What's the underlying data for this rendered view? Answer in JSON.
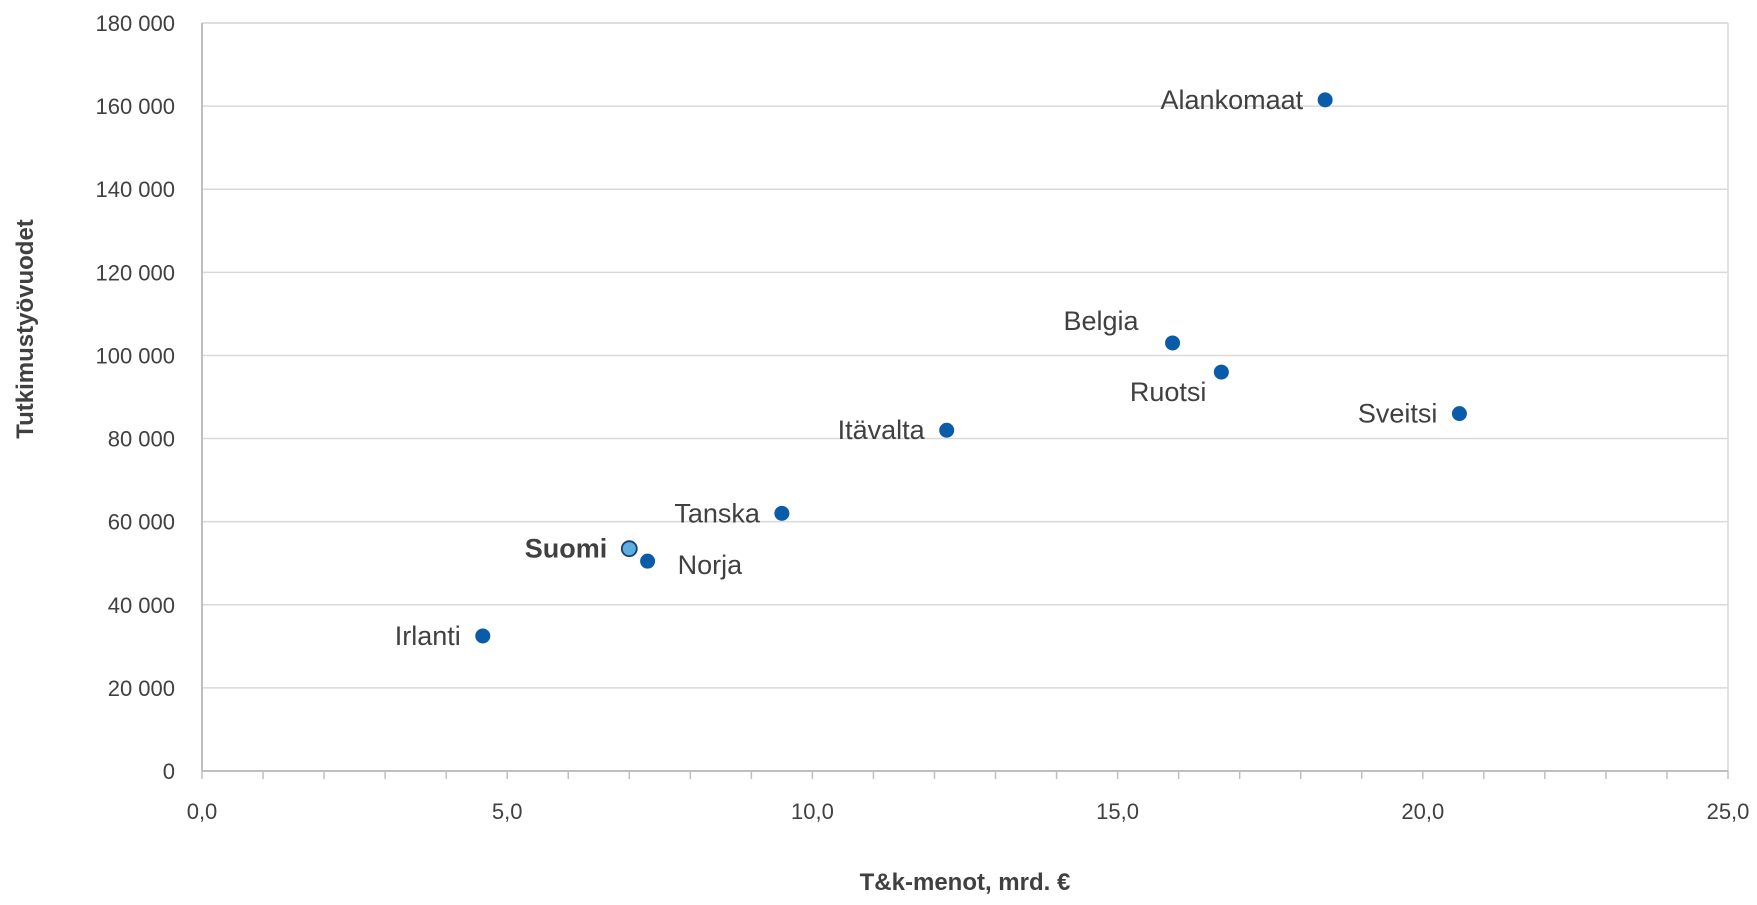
{
  "chart_data": {
    "type": "scatter",
    "title": "",
    "xlabel": "T&k-menot, mrd. €",
    "ylabel": "Tutkimustyövuodet",
    "xlim": [
      0,
      25
    ],
    "ylim": [
      0,
      180000
    ],
    "x_ticks": [
      {
        "value": 0,
        "label": "0,0"
      },
      {
        "value": 5,
        "label": "5,0"
      },
      {
        "value": 10,
        "label": "10,0"
      },
      {
        "value": 15,
        "label": "15,0"
      },
      {
        "value": 20,
        "label": "20,0"
      },
      {
        "value": 25,
        "label": "25,0"
      }
    ],
    "x_minor_step": 1,
    "y_ticks": [
      {
        "value": 0,
        "label": "0"
      },
      {
        "value": 20000,
        "label": "20 000"
      },
      {
        "value": 40000,
        "label": "40 000"
      },
      {
        "value": 60000,
        "label": "60 000"
      },
      {
        "value": 80000,
        "label": "80 000"
      },
      {
        "value": 100000,
        "label": "100 000"
      },
      {
        "value": 120000,
        "label": "120 000"
      },
      {
        "value": 140000,
        "label": "140 000"
      },
      {
        "value": 160000,
        "label": "160 000"
      },
      {
        "value": 180000,
        "label": "180 000"
      }
    ],
    "grid": "horizontal",
    "legend": "none",
    "colors": {
      "point": "#0b5ca8",
      "highlight": "#5aaee0",
      "highlight_stroke": "#1b3f6b",
      "grid": "#d9d9d9",
      "axis": "#bfbfbf",
      "text": "#404040"
    },
    "points": [
      {
        "label": "Alankomaat",
        "x": 18.4,
        "y": 161500,
        "label_side": "left",
        "highlight": false
      },
      {
        "label": "Belgia",
        "x": 15.9,
        "y": 103000,
        "label_side": "upper-left",
        "highlight": false
      },
      {
        "label": "Ruotsi",
        "x": 16.7,
        "y": 96000,
        "label_side": "lower-left",
        "highlight": false
      },
      {
        "label": "Sveitsi",
        "x": 20.6,
        "y": 86000,
        "label_side": "left",
        "highlight": false
      },
      {
        "label": "Itävalta",
        "x": 12.2,
        "y": 82000,
        "label_side": "left",
        "highlight": false
      },
      {
        "label": "Tanska",
        "x": 9.5,
        "y": 62000,
        "label_side": "left",
        "highlight": false
      },
      {
        "label": "Suomi",
        "x": 7.0,
        "y": 53500,
        "label_side": "left",
        "highlight": true
      },
      {
        "label": "Norja",
        "x": 7.3,
        "y": 50500,
        "label_side": "lower-right",
        "highlight": false
      },
      {
        "label": "Irlanti",
        "x": 4.6,
        "y": 32500,
        "label_side": "left",
        "highlight": false
      }
    ]
  }
}
